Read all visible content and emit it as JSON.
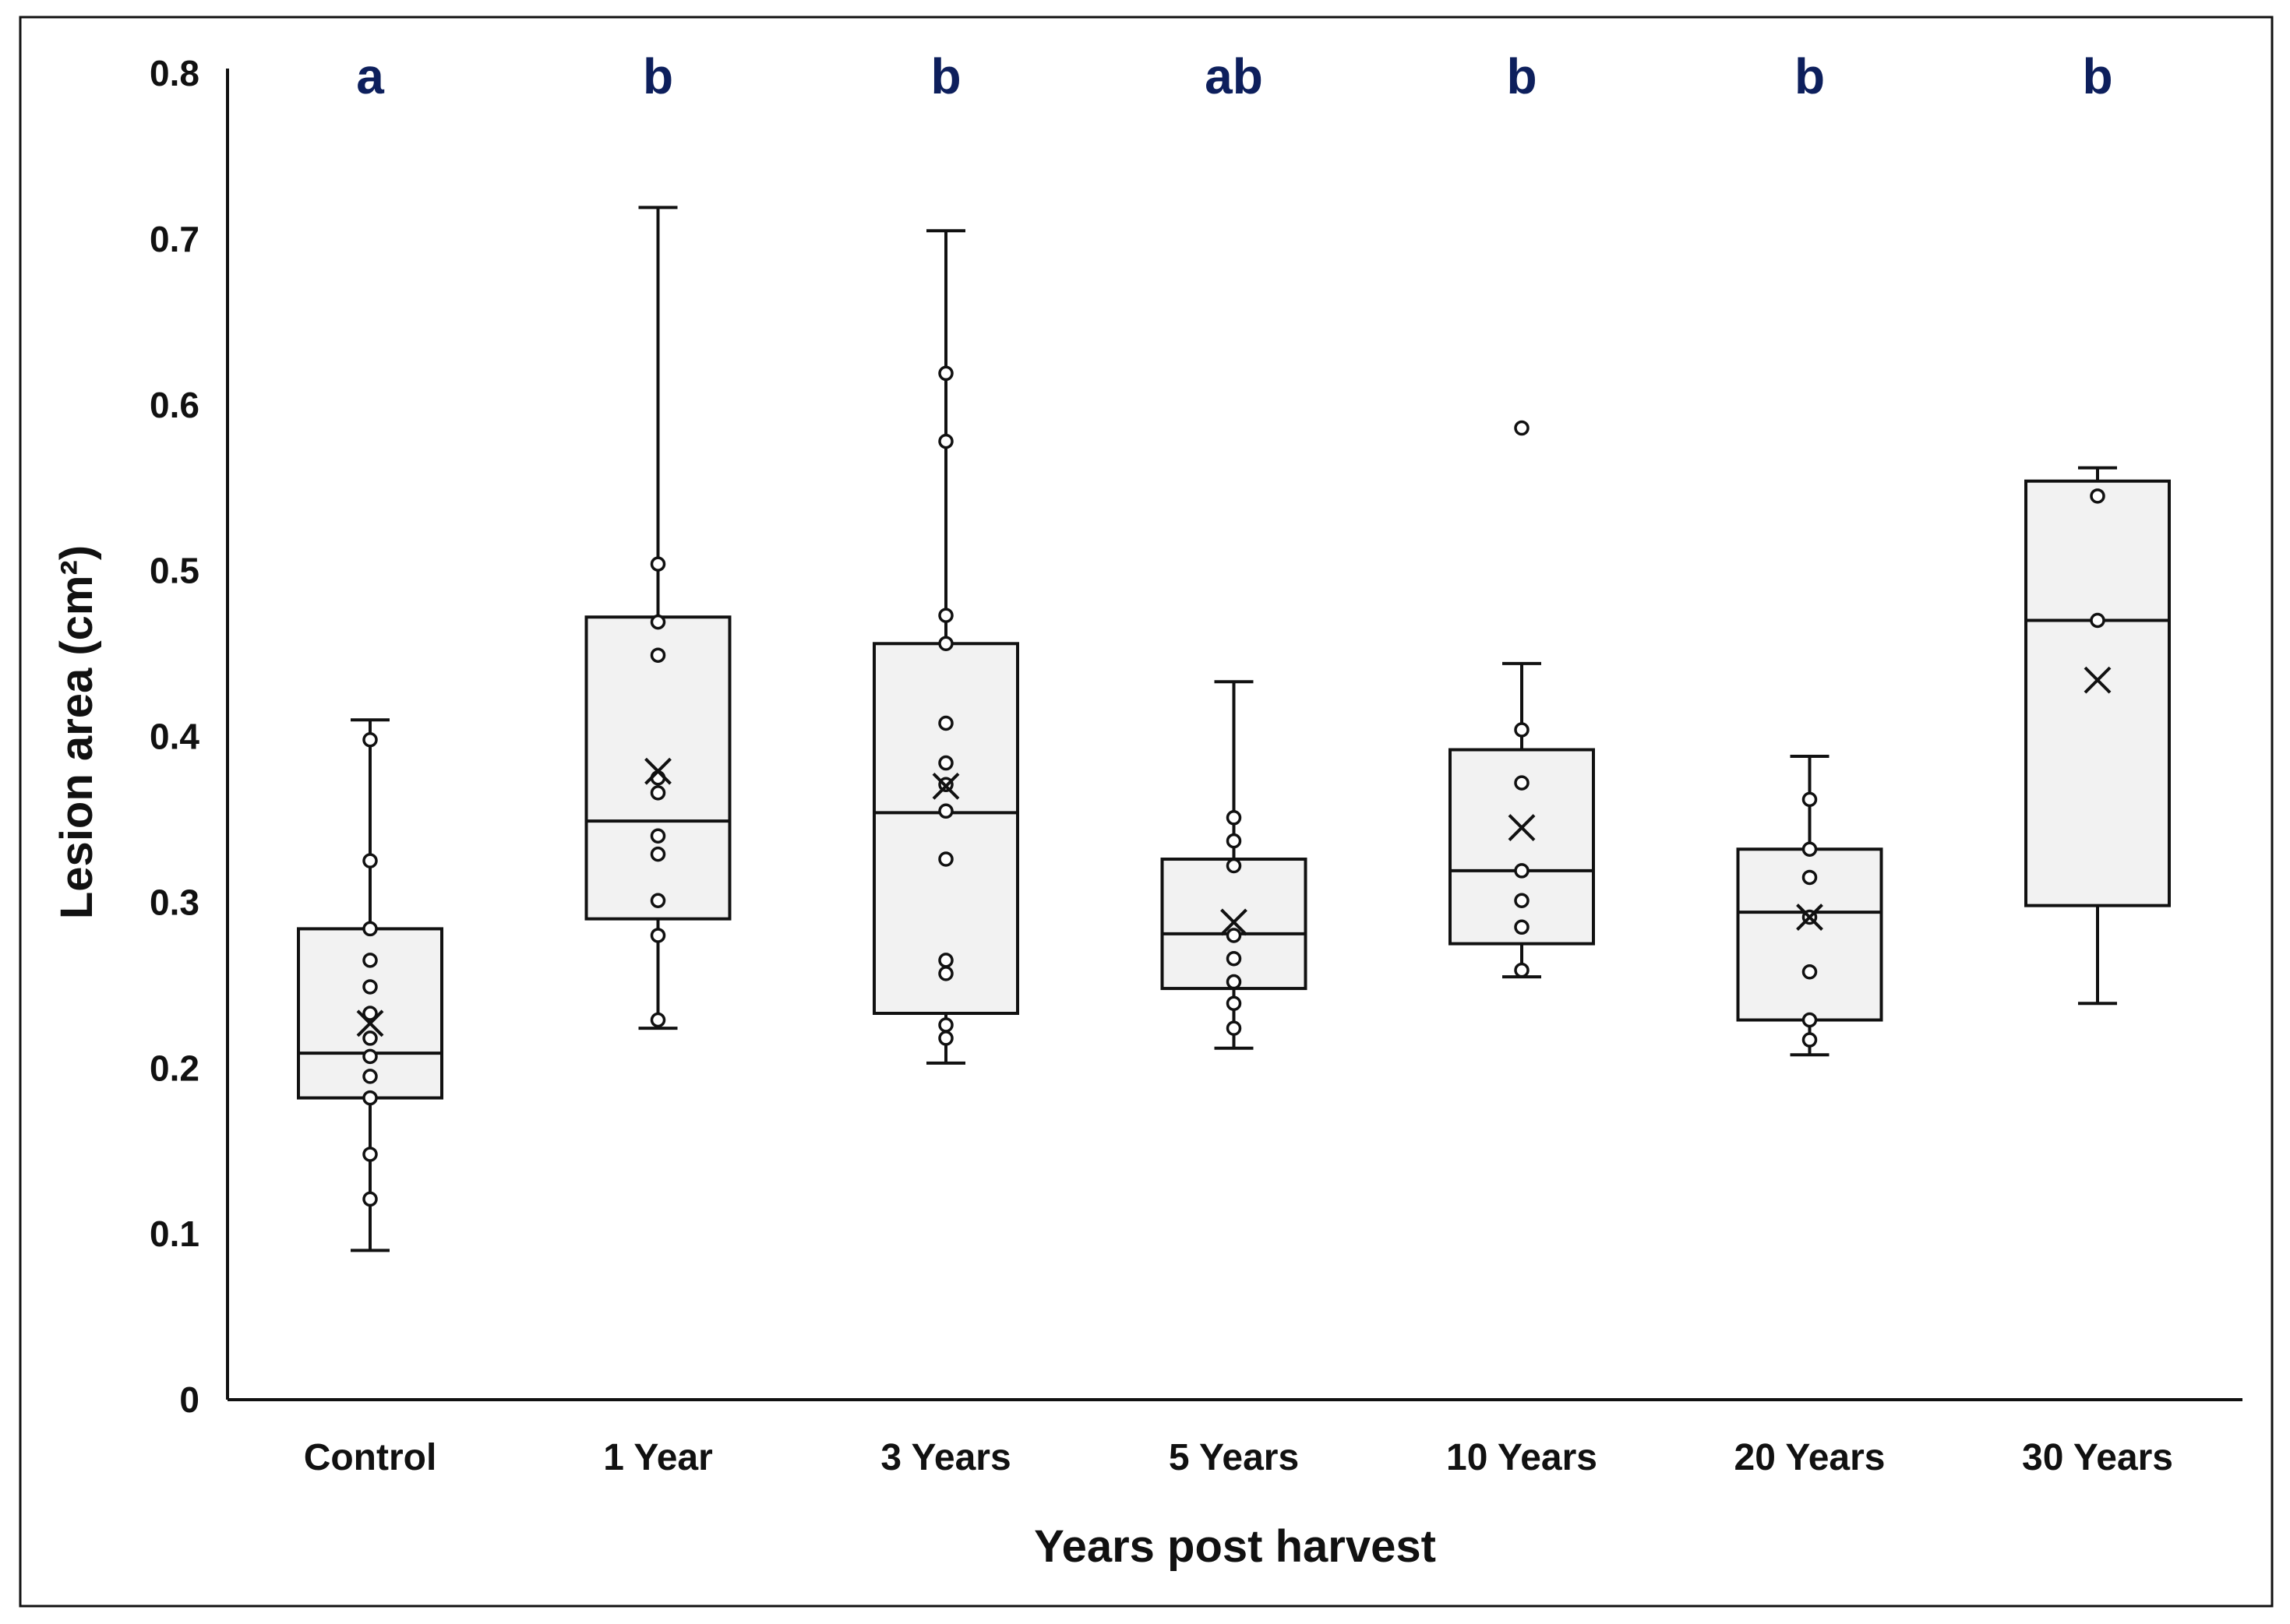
{
  "chart_data": {
    "type": "box",
    "title": "",
    "xlabel": "Years post harvest",
    "ylabel": "Lesion area (cm²)",
    "ylim": [
      0,
      0.8
    ],
    "yticks": [
      {
        "value": 0,
        "label": "0"
      },
      {
        "value": 0.1,
        "label": "0.1"
      },
      {
        "value": 0.2,
        "label": "0.2"
      },
      {
        "value": 0.3,
        "label": "0.3"
      },
      {
        "value": 0.4,
        "label": "0.4"
      },
      {
        "value": 0.5,
        "label": "0.5"
      },
      {
        "value": 0.6,
        "label": "0.6"
      },
      {
        "value": 0.7,
        "label": "0.7"
      },
      {
        "value": 0.8,
        "label": "0.8"
      }
    ],
    "grid": false,
    "legend": "none",
    "colors": {
      "box_fill": "#f2f2f2",
      "stroke": "#111111",
      "significance": "#0d1f5c"
    },
    "categories": [
      "Control",
      "1 Year",
      "3 Years",
      "5 Years",
      "10 Years",
      "20 Years",
      "30 Years"
    ],
    "significance_letters": [
      "a",
      "b",
      "b",
      "ab",
      "b",
      "b",
      "b"
    ],
    "boxes": [
      {
        "min": 0.09,
        "q1": 0.182,
        "median": 0.209,
        "q3": 0.284,
        "max": 0.41,
        "mean": 0.227,
        "points": [
          0.398,
          0.325,
          0.284,
          0.265,
          0.249,
          0.233,
          0.218,
          0.207,
          0.195,
          0.182,
          0.148,
          0.121
        ]
      },
      {
        "min": 0.224,
        "q1": 0.29,
        "median": 0.349,
        "q3": 0.472,
        "max": 0.719,
        "mean": 0.379,
        "points": [
          0.504,
          0.469,
          0.449,
          0.375,
          0.366,
          0.34,
          0.329,
          0.301,
          0.28,
          0.229
        ]
      },
      {
        "min": 0.203,
        "q1": 0.233,
        "median": 0.354,
        "q3": 0.456,
        "max": 0.705,
        "mean": 0.37,
        "points": [
          0.619,
          0.578,
          0.473,
          0.456,
          0.408,
          0.384,
          0.371,
          0.355,
          0.326,
          0.265,
          0.257,
          0.226,
          0.218
        ]
      },
      {
        "min": 0.212,
        "q1": 0.248,
        "median": 0.281,
        "q3": 0.326,
        "max": 0.433,
        "mean": 0.288,
        "points": [
          0.351,
          0.337,
          0.322,
          0.28,
          0.266,
          0.252,
          0.239,
          0.224
        ]
      },
      {
        "min": 0.255,
        "q1": 0.275,
        "median": 0.319,
        "q3": 0.392,
        "max": 0.444,
        "mean": 0.345,
        "points": [
          0.586,
          0.404,
          0.372,
          0.319,
          0.301,
          0.285,
          0.259
        ]
      },
      {
        "min": 0.208,
        "q1": 0.229,
        "median": 0.294,
        "q3": 0.332,
        "max": 0.388,
        "mean": 0.291,
        "points": [
          0.362,
          0.332,
          0.315,
          0.291,
          0.258,
          0.229,
          0.217
        ]
      },
      {
        "min": 0.239,
        "q1": 0.298,
        "median": 0.47,
        "q3": 0.554,
        "max": 0.562,
        "mean": 0.434,
        "points": [
          0.545,
          0.47
        ]
      }
    ]
  }
}
